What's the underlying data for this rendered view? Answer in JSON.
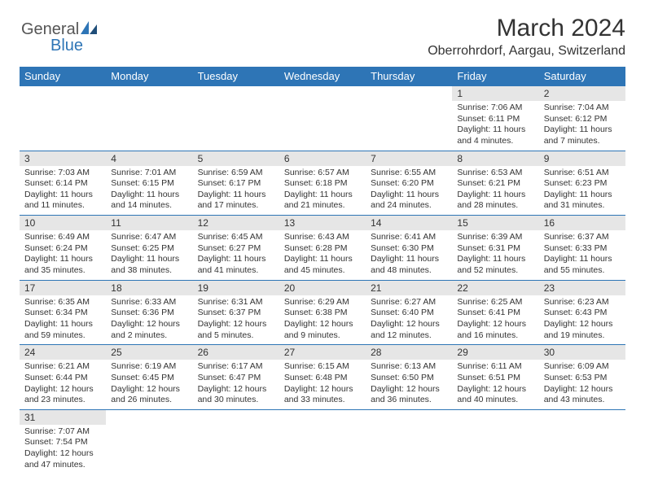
{
  "brand": {
    "name1": "General",
    "name2": "Blue"
  },
  "title": "March 2024",
  "location": "Oberrohrdorf, Aargau, Switzerland",
  "colors": {
    "accent": "#2e75b6",
    "header_bg": "#2e75b6",
    "day_head_bg": "#e6e6e6"
  },
  "day_headers": [
    "Sunday",
    "Monday",
    "Tuesday",
    "Wednesday",
    "Thursday",
    "Friday",
    "Saturday"
  ],
  "weeks": [
    [
      null,
      null,
      null,
      null,
      null,
      {
        "n": "1",
        "sr": "7:06 AM",
        "ss": "6:11 PM",
        "dl": "11 hours and 4 minutes."
      },
      {
        "n": "2",
        "sr": "7:04 AM",
        "ss": "6:12 PM",
        "dl": "11 hours and 7 minutes."
      }
    ],
    [
      {
        "n": "3",
        "sr": "7:03 AM",
        "ss": "6:14 PM",
        "dl": "11 hours and 11 minutes."
      },
      {
        "n": "4",
        "sr": "7:01 AM",
        "ss": "6:15 PM",
        "dl": "11 hours and 14 minutes."
      },
      {
        "n": "5",
        "sr": "6:59 AM",
        "ss": "6:17 PM",
        "dl": "11 hours and 17 minutes."
      },
      {
        "n": "6",
        "sr": "6:57 AM",
        "ss": "6:18 PM",
        "dl": "11 hours and 21 minutes."
      },
      {
        "n": "7",
        "sr": "6:55 AM",
        "ss": "6:20 PM",
        "dl": "11 hours and 24 minutes."
      },
      {
        "n": "8",
        "sr": "6:53 AM",
        "ss": "6:21 PM",
        "dl": "11 hours and 28 minutes."
      },
      {
        "n": "9",
        "sr": "6:51 AM",
        "ss": "6:23 PM",
        "dl": "11 hours and 31 minutes."
      }
    ],
    [
      {
        "n": "10",
        "sr": "6:49 AM",
        "ss": "6:24 PM",
        "dl": "11 hours and 35 minutes."
      },
      {
        "n": "11",
        "sr": "6:47 AM",
        "ss": "6:25 PM",
        "dl": "11 hours and 38 minutes."
      },
      {
        "n": "12",
        "sr": "6:45 AM",
        "ss": "6:27 PM",
        "dl": "11 hours and 41 minutes."
      },
      {
        "n": "13",
        "sr": "6:43 AM",
        "ss": "6:28 PM",
        "dl": "11 hours and 45 minutes."
      },
      {
        "n": "14",
        "sr": "6:41 AM",
        "ss": "6:30 PM",
        "dl": "11 hours and 48 minutes."
      },
      {
        "n": "15",
        "sr": "6:39 AM",
        "ss": "6:31 PM",
        "dl": "11 hours and 52 minutes."
      },
      {
        "n": "16",
        "sr": "6:37 AM",
        "ss": "6:33 PM",
        "dl": "11 hours and 55 minutes."
      }
    ],
    [
      {
        "n": "17",
        "sr": "6:35 AM",
        "ss": "6:34 PM",
        "dl": "11 hours and 59 minutes."
      },
      {
        "n": "18",
        "sr": "6:33 AM",
        "ss": "6:36 PM",
        "dl": "12 hours and 2 minutes."
      },
      {
        "n": "19",
        "sr": "6:31 AM",
        "ss": "6:37 PM",
        "dl": "12 hours and 5 minutes."
      },
      {
        "n": "20",
        "sr": "6:29 AM",
        "ss": "6:38 PM",
        "dl": "12 hours and 9 minutes."
      },
      {
        "n": "21",
        "sr": "6:27 AM",
        "ss": "6:40 PM",
        "dl": "12 hours and 12 minutes."
      },
      {
        "n": "22",
        "sr": "6:25 AM",
        "ss": "6:41 PM",
        "dl": "12 hours and 16 minutes."
      },
      {
        "n": "23",
        "sr": "6:23 AM",
        "ss": "6:43 PM",
        "dl": "12 hours and 19 minutes."
      }
    ],
    [
      {
        "n": "24",
        "sr": "6:21 AM",
        "ss": "6:44 PM",
        "dl": "12 hours and 23 minutes."
      },
      {
        "n": "25",
        "sr": "6:19 AM",
        "ss": "6:45 PM",
        "dl": "12 hours and 26 minutes."
      },
      {
        "n": "26",
        "sr": "6:17 AM",
        "ss": "6:47 PM",
        "dl": "12 hours and 30 minutes."
      },
      {
        "n": "27",
        "sr": "6:15 AM",
        "ss": "6:48 PM",
        "dl": "12 hours and 33 minutes."
      },
      {
        "n": "28",
        "sr": "6:13 AM",
        "ss": "6:50 PM",
        "dl": "12 hours and 36 minutes."
      },
      {
        "n": "29",
        "sr": "6:11 AM",
        "ss": "6:51 PM",
        "dl": "12 hours and 40 minutes."
      },
      {
        "n": "30",
        "sr": "6:09 AM",
        "ss": "6:53 PM",
        "dl": "12 hours and 43 minutes."
      }
    ],
    [
      {
        "n": "31",
        "sr": "7:07 AM",
        "ss": "7:54 PM",
        "dl": "12 hours and 47 minutes."
      },
      null,
      null,
      null,
      null,
      null,
      null
    ]
  ],
  "labels": {
    "sunrise": "Sunrise:",
    "sunset": "Sunset:",
    "daylight": "Daylight:"
  }
}
